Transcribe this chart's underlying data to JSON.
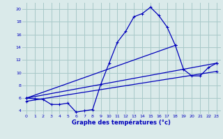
{
  "xlabel": "Graphe des températures (°c)",
  "bg_color": "#daeaea",
  "grid_color": "#a8c8c8",
  "line_color": "#0000bb",
  "ylim": [
    3.5,
    21
  ],
  "xlim": [
    -0.5,
    23.5
  ],
  "yticks": [
    4,
    6,
    8,
    10,
    12,
    14,
    16,
    18,
    20
  ],
  "xticks": [
    0,
    1,
    2,
    3,
    4,
    5,
    6,
    7,
    8,
    9,
    10,
    11,
    12,
    13,
    14,
    15,
    16,
    17,
    18,
    19,
    20,
    21,
    22,
    23
  ],
  "series": [
    {
      "x": [
        0,
        1,
        2,
        3,
        4,
        5,
        6,
        7,
        8,
        9,
        10,
        11,
        12,
        13,
        14,
        15,
        16,
        17,
        18
      ],
      "y": [
        6.0,
        5.9,
        5.8,
        5.0,
        5.0,
        5.2,
        3.8,
        4.0,
        4.2,
        8.2,
        11.5,
        14.8,
        16.5,
        18.8,
        19.3,
        20.3,
        19.0,
        17.2,
        14.3
      ]
    },
    {
      "x": [
        0,
        18,
        19,
        20,
        21,
        22,
        23
      ],
      "y": [
        6.0,
        14.3,
        10.5,
        9.5,
        9.5,
        10.8,
        11.5
      ]
    },
    {
      "x": [
        0,
        23
      ],
      "y": [
        6.0,
        11.5
      ]
    },
    {
      "x": [
        0,
        23
      ],
      "y": [
        5.5,
        10.2
      ]
    }
  ]
}
